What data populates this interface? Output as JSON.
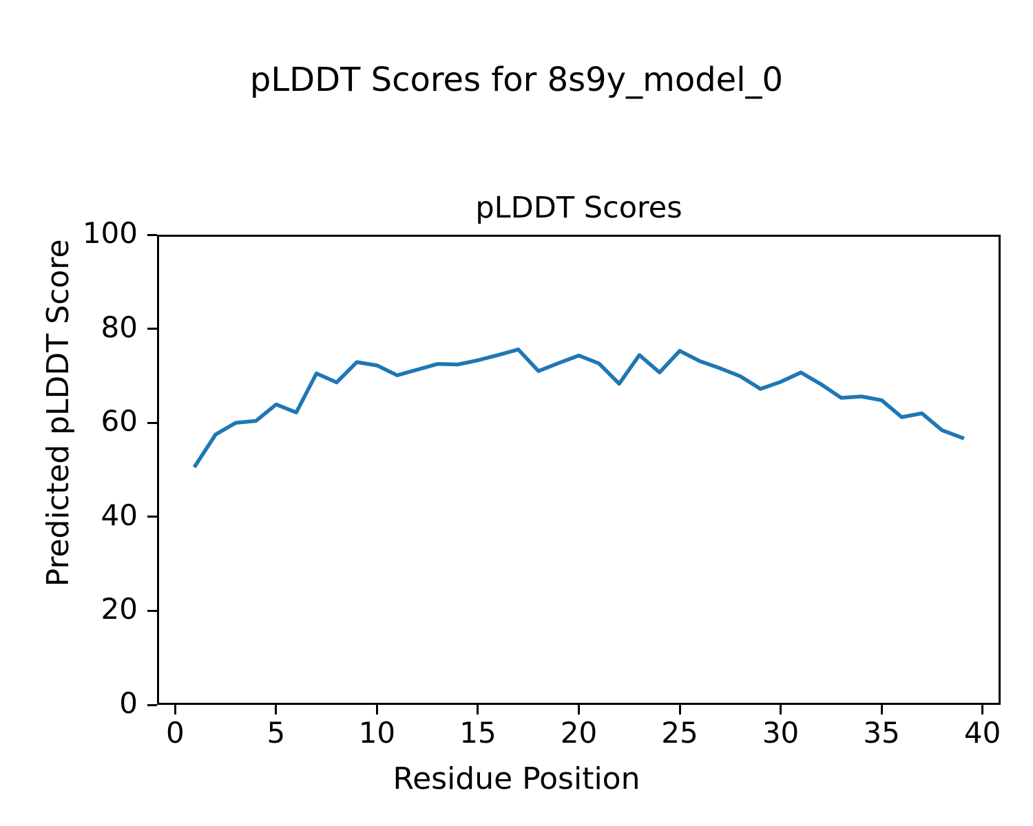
{
  "figure": {
    "suptitle": "pLDDT Scores for 8s9y_model_0"
  },
  "chart_data": {
    "type": "line",
    "title": "pLDDT Scores",
    "xlabel": "Residue Position",
    "ylabel": "Predicted pLDDT Score",
    "x": [
      1,
      2,
      3,
      4,
      5,
      6,
      7,
      8,
      9,
      10,
      11,
      12,
      13,
      14,
      15,
      16,
      17,
      18,
      19,
      20,
      21,
      22,
      23,
      24,
      25,
      26,
      27,
      28,
      29,
      30,
      31,
      32,
      33,
      34,
      35,
      36,
      37,
      38,
      39
    ],
    "y": [
      50.9,
      57.5,
      60.0,
      60.4,
      63.9,
      62.2,
      70.5,
      68.6,
      72.9,
      72.2,
      70.1,
      71.3,
      72.5,
      72.4,
      73.3,
      74.4,
      75.6,
      71.0,
      72.7,
      74.3,
      72.6,
      68.3,
      74.4,
      70.7,
      75.3,
      73.1,
      71.6,
      69.9,
      67.2,
      68.7,
      70.7,
      68.2,
      65.3,
      65.6,
      64.8,
      61.2,
      62.0,
      58.4,
      56.8
    ],
    "xlim": [
      -0.9,
      40.9
    ],
    "ylim": [
      0,
      100
    ],
    "xticks": [
      0,
      5,
      10,
      15,
      20,
      25,
      30,
      35,
      40
    ],
    "yticks": [
      0,
      20,
      40,
      60,
      80,
      100
    ],
    "line_color": "#1f77b4",
    "axes_edge_color": "#000000",
    "background_color": "#ffffff",
    "grid": false,
    "legend": null
  }
}
